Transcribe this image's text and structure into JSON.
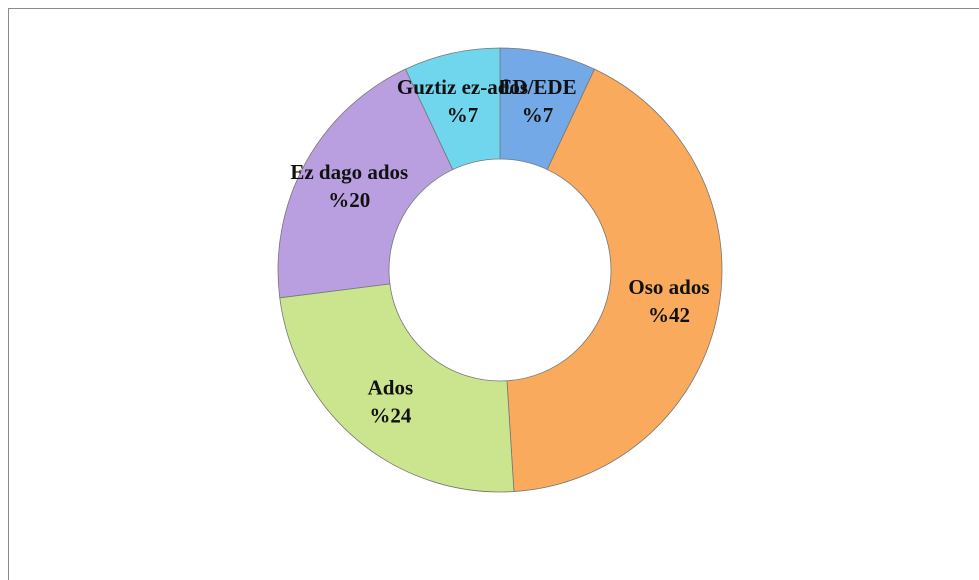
{
  "chart_data": {
    "type": "donut",
    "categories": [
      "ED/EDE",
      "Oso ados",
      "Ados",
      "Ez dago ados",
      "Guztiz ez-ados"
    ],
    "values": [
      7,
      42,
      24,
      20,
      7
    ],
    "value_labels": [
      "%7",
      "%42",
      "%24",
      "%20",
      "%7"
    ],
    "colors": [
      "#72a9e6",
      "#f9aa5c",
      "#cbe48e",
      "#b99fe0",
      "#70d6ee"
    ]
  }
}
